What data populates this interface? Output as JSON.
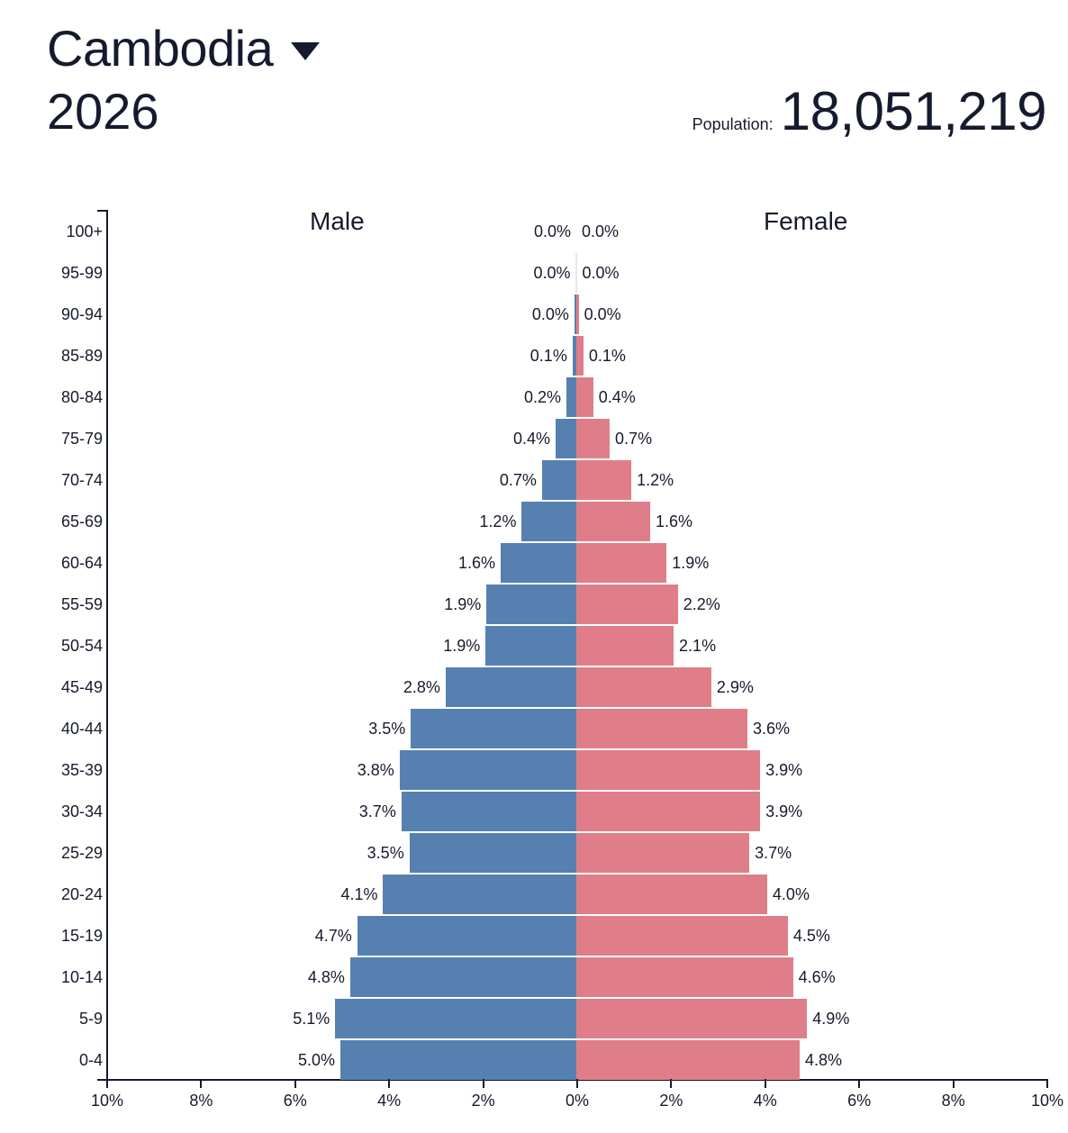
{
  "header": {
    "country": "Cambodia",
    "country_dropdown_icon": "caret-down-icon",
    "year": "2026",
    "population_label": "Population:",
    "population_value": "18,051,219"
  },
  "chart": {
    "male_title": "Male",
    "female_title": "Female",
    "x_ticks": [
      "10%",
      "8%",
      "6%",
      "4%",
      "2%",
      "0%",
      "2%",
      "4%",
      "6%",
      "8%",
      "10%"
    ]
  },
  "colors": {
    "male": "#5680b0",
    "female": "#df7e88",
    "text": "#161a2e"
  },
  "chart_data": {
    "type": "bar",
    "orientation": "horizontal",
    "subtype": "population-pyramid",
    "title": "Cambodia 2026",
    "subtitle": "Population: 18,051,219",
    "xlabel": "",
    "ylabel": "",
    "xlim": [
      -10,
      10
    ],
    "x_tick_labels": [
      "10%",
      "8%",
      "6%",
      "4%",
      "2%",
      "0%",
      "2%",
      "4%",
      "6%",
      "8%",
      "10%"
    ],
    "grid": false,
    "legend": [
      "Male",
      "Female"
    ],
    "categories": [
      "100+",
      "95-99",
      "90-94",
      "85-89",
      "80-84",
      "75-79",
      "70-74",
      "65-69",
      "60-64",
      "55-59",
      "50-54",
      "45-49",
      "40-44",
      "35-39",
      "30-34",
      "25-29",
      "20-24",
      "15-19",
      "10-14",
      "5-9",
      "0-4"
    ],
    "series": [
      {
        "name": "Male",
        "color": "#5680b0",
        "labels": [
          "0.0%",
          "0.0%",
          "0.0%",
          "0.1%",
          "0.2%",
          "0.4%",
          "0.7%",
          "1.2%",
          "1.6%",
          "1.9%",
          "1.9%",
          "2.8%",
          "3.5%",
          "3.8%",
          "3.7%",
          "3.5%",
          "4.1%",
          "4.7%",
          "4.8%",
          "5.1%",
          "5.0%"
        ],
        "values": [
          0.0,
          0.0,
          0.0,
          0.1,
          0.2,
          0.4,
          0.7,
          1.2,
          1.6,
          1.9,
          1.9,
          2.8,
          3.5,
          3.8,
          3.7,
          3.5,
          4.1,
          4.7,
          4.8,
          5.1,
          5.0
        ],
        "bar_extent": [
          0.0,
          0.01,
          0.04,
          0.08,
          0.21,
          0.44,
          0.73,
          1.16,
          1.61,
          1.91,
          1.93,
          2.78,
          3.52,
          3.76,
          3.72,
          3.55,
          4.11,
          4.66,
          4.81,
          5.13,
          5.02
        ]
      },
      {
        "name": "Female",
        "color": "#df7e88",
        "labels": [
          "0.0%",
          "0.0%",
          "0.0%",
          "0.1%",
          "0.4%",
          "0.7%",
          "1.2%",
          "1.6%",
          "1.9%",
          "2.2%",
          "2.1%",
          "2.9%",
          "3.6%",
          "3.9%",
          "3.9%",
          "3.7%",
          "4.0%",
          "4.5%",
          "4.6%",
          "4.9%",
          "4.8%"
        ],
        "values": [
          0.0,
          0.0,
          0.0,
          0.1,
          0.4,
          0.7,
          1.2,
          1.6,
          1.9,
          2.2,
          2.1,
          2.9,
          3.6,
          3.9,
          3.9,
          3.7,
          4.0,
          4.5,
          4.6,
          4.9,
          4.8
        ],
        "bar_extent": [
          0.0,
          0.01,
          0.05,
          0.15,
          0.36,
          0.71,
          1.17,
          1.57,
          1.92,
          2.16,
          2.07,
          2.87,
          3.64,
          3.91,
          3.91,
          3.68,
          4.06,
          4.5,
          4.61,
          4.91,
          4.75
        ]
      }
    ]
  }
}
